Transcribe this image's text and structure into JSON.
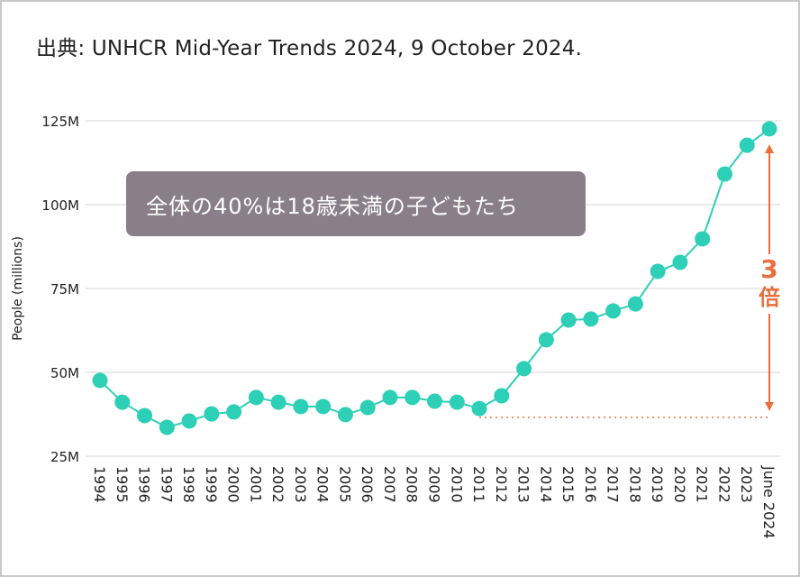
{
  "source": "出典: UNHCR Mid-Year Trends 2024, 9 October 2024.",
  "callout": "全体の40%は18歳未満の子どもたち",
  "annotation": {
    "number": "3",
    "unit": "倍",
    "color": "#e8703f"
  },
  "colors": {
    "series": "#2ecfb7",
    "grid": "#e3e3e3",
    "callout_bg": "#8a7f89"
  },
  "chart_data": {
    "type": "line",
    "title": "",
    "xlabel": "",
    "ylabel": "People (millions)",
    "ylim": [
      25,
      125
    ],
    "yticks": [
      25,
      50,
      75,
      100,
      125
    ],
    "ytick_labels": [
      "25M",
      "50M",
      "75M",
      "100M",
      "125M"
    ],
    "grid": true,
    "categories": [
      "1994",
      "1995",
      "1996",
      "1997",
      "1998",
      "1999",
      "2000",
      "2001",
      "2002",
      "2003",
      "2004",
      "2005",
      "2006",
      "2007",
      "2008",
      "2009",
      "2010",
      "2011",
      "2012",
      "2013",
      "2014",
      "2015",
      "2016",
      "2017",
      "2018",
      "2019",
      "2020",
      "2021",
      "2022",
      "2023",
      "June 2024"
    ],
    "values": [
      47.6,
      41.1,
      37.1,
      33.6,
      35.5,
      37.6,
      38.2,
      42.5,
      41.1,
      39.8,
      39.8,
      37.4,
      39.5,
      42.5,
      42.5,
      41.4,
      41.1,
      39.2,
      43.0,
      51.1,
      59.7,
      65.6,
      65.9,
      68.3,
      70.4,
      80.1,
      82.8,
      89.8,
      109.1,
      117.7,
      122.6
    ]
  }
}
